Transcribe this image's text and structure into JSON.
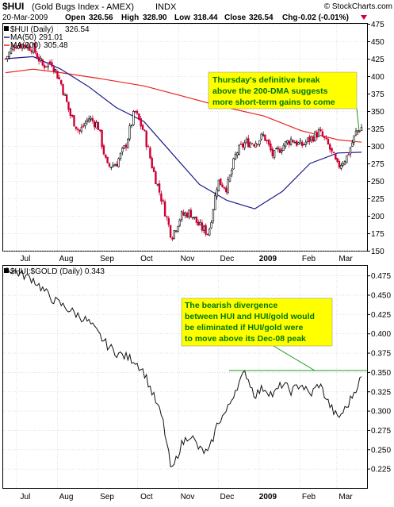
{
  "header": {
    "symbol": "$HUI",
    "description": "(Gold Bugs Index - AMEX)",
    "exchange": "INDX",
    "watermark": "© StockCharts.com",
    "date": "20-Mar-2009",
    "open_label": "Open",
    "open": "326.56",
    "high_label": "High",
    "high": "328.90",
    "low_label": "Low",
    "low": "318.44",
    "close_label": "Close",
    "close": "326.54",
    "chg_label": "Chg",
    "chg": "-0.02 (-0.01%)"
  },
  "colors": {
    "up_candle": "#000000",
    "down_candle": "#cc0033",
    "ma50": "#1a1a8c",
    "ma200": "#e8261e",
    "annotation_box": "#ffff00",
    "annotation_text": "#007700",
    "peak_line": "#1a9a1a",
    "grid": "#c8c8c8"
  },
  "chart_data": [
    {
      "type": "candlestick",
      "title": "$HUI (Daily) 326.54",
      "legend_position": "top-left",
      "legend": [
        {
          "name": "$HUI (Daily)",
          "value": "326.54"
        },
        {
          "name": "MA(50)",
          "value": "291.01"
        },
        {
          "name": "MA(200)",
          "value": "305.48"
        }
      ],
      "ylim": [
        150,
        475
      ],
      "y_ticks": [
        "475",
        "450",
        "425",
        "400",
        "375",
        "350",
        "325",
        "300",
        "275",
        "250",
        "225",
        "200",
        "175",
        "150"
      ],
      "x_tick_labels": [
        "Jul",
        "Aug",
        "Sep",
        "Oct",
        "Nov",
        "Dec",
        "2009",
        "Feb",
        "Mar"
      ],
      "grid": true,
      "price_path": [
        [
          "2008-06-23",
          425
        ],
        [
          "2008-06-30",
          445
        ],
        [
          "2008-07-07",
          445
        ],
        [
          "2008-07-14",
          440
        ],
        [
          "2008-07-21",
          415
        ],
        [
          "2008-07-28",
          420
        ],
        [
          "2008-08-04",
          390
        ],
        [
          "2008-08-11",
          345
        ],
        [
          "2008-08-18",
          320
        ],
        [
          "2008-08-25",
          340
        ],
        [
          "2008-09-01",
          330
        ],
        [
          "2008-09-08",
          270
        ],
        [
          "2008-09-15",
          275
        ],
        [
          "2008-09-22",
          300
        ],
        [
          "2008-09-29",
          350
        ],
        [
          "2008-10-06",
          320
        ],
        [
          "2008-10-13",
          265
        ],
        [
          "2008-10-20",
          220
        ],
        [
          "2008-10-27",
          170
        ],
        [
          "2008-11-03",
          200
        ],
        [
          "2008-11-10",
          205
        ],
        [
          "2008-11-17",
          185
        ],
        [
          "2008-11-24",
          175
        ],
        [
          "2008-12-01",
          250
        ],
        [
          "2008-12-08",
          240
        ],
        [
          "2008-12-15",
          290
        ],
        [
          "2008-12-22",
          305
        ],
        [
          "2008-12-29",
          305
        ],
        [
          "2009-01-05",
          315
        ],
        [
          "2009-01-12",
          285
        ],
        [
          "2009-01-19",
          300
        ],
        [
          "2009-01-26",
          310
        ],
        [
          "2009-02-02",
          300
        ],
        [
          "2009-02-09",
          310
        ],
        [
          "2009-02-16",
          320
        ],
        [
          "2009-02-23",
          300
        ],
        [
          "2009-03-02",
          270
        ],
        [
          "2009-03-09",
          285
        ],
        [
          "2009-03-16",
          320
        ],
        [
          "2009-03-20",
          326.54
        ]
      ],
      "ma50_path": [
        [
          "2008-06-23",
          425
        ],
        [
          "2008-07-14",
          428
        ],
        [
          "2008-08-04",
          410
        ],
        [
          "2008-08-25",
          385
        ],
        [
          "2008-09-15",
          355
        ],
        [
          "2008-10-06",
          335
        ],
        [
          "2008-10-27",
          290
        ],
        [
          "2008-11-17",
          245
        ],
        [
          "2008-12-08",
          222
        ],
        [
          "2008-12-29",
          210
        ],
        [
          "2009-01-19",
          235
        ],
        [
          "2009-02-09",
          275
        ],
        [
          "2009-03-02",
          290
        ],
        [
          "2009-03-20",
          291.01
        ]
      ],
      "ma200_path": [
        [
          "2008-06-23",
          405
        ],
        [
          "2008-07-14",
          410
        ],
        [
          "2008-08-04",
          405
        ],
        [
          "2008-09-01",
          397
        ],
        [
          "2008-10-06",
          386
        ],
        [
          "2008-11-03",
          372
        ],
        [
          "2008-12-01",
          358
        ],
        [
          "2009-01-05",
          343
        ],
        [
          "2009-02-02",
          322
        ],
        [
          "2009-03-02",
          309
        ],
        [
          "2009-03-20",
          305.48
        ]
      ],
      "annotation": {
        "lines": [
          "Thursday's definitive break",
          "above the 200-DMA suggests",
          "more short-term gains to come"
        ]
      }
    },
    {
      "type": "line",
      "title": "$HUI:$GOLD (Daily) 0.343",
      "ylim": [
        0.2,
        0.4875
      ],
      "y_ticks": [
        "0.475",
        "0.450",
        "0.425",
        "0.400",
        "0.375",
        "0.350",
        "0.325",
        "0.300",
        "0.275",
        "0.250",
        "0.225"
      ],
      "x_tick_labels": [
        "Jul",
        "Aug",
        "Sep",
        "Oct",
        "Nov",
        "Dec",
        "2009",
        "Feb",
        "Mar"
      ],
      "grid": true,
      "ratio_path": [
        [
          "2008-06-23",
          0.485
        ],
        [
          "2008-07-07",
          0.475
        ],
        [
          "2008-07-14",
          0.47
        ],
        [
          "2008-07-28",
          0.445
        ],
        [
          "2008-08-11",
          0.43
        ],
        [
          "2008-08-25",
          0.415
        ],
        [
          "2008-09-08",
          0.385
        ],
        [
          "2008-09-15",
          0.375
        ],
        [
          "2008-09-29",
          0.365
        ],
        [
          "2008-10-06",
          0.35
        ],
        [
          "2008-10-13",
          0.32
        ],
        [
          "2008-10-20",
          0.29
        ],
        [
          "2008-10-27",
          0.22
        ],
        [
          "2008-11-03",
          0.255
        ],
        [
          "2008-11-10",
          0.27
        ],
        [
          "2008-11-17",
          0.25
        ],
        [
          "2008-11-24",
          0.245
        ],
        [
          "2008-12-01",
          0.285
        ],
        [
          "2008-12-08",
          0.3
        ],
        [
          "2008-12-15",
          0.33
        ],
        [
          "2008-12-22",
          0.35
        ],
        [
          "2008-12-29",
          0.32
        ],
        [
          "2009-01-05",
          0.33
        ],
        [
          "2009-01-12",
          0.32
        ],
        [
          "2009-01-19",
          0.335
        ],
        [
          "2009-01-26",
          0.325
        ],
        [
          "2009-02-02",
          0.335
        ],
        [
          "2009-02-09",
          0.32
        ],
        [
          "2009-02-16",
          0.335
        ],
        [
          "2009-02-23",
          0.31
        ],
        [
          "2009-03-02",
          0.29
        ],
        [
          "2009-03-09",
          0.305
        ],
        [
          "2009-03-16",
          0.33
        ],
        [
          "2009-03-20",
          0.343
        ]
      ],
      "peak_line_value": 0.352,
      "annotation": {
        "lines": [
          "The bearish divergence",
          "between HUI and HUI/gold would",
          "be eliminated if HUI/gold were",
          "to move above its Dec-08 peak"
        ]
      }
    }
  ]
}
